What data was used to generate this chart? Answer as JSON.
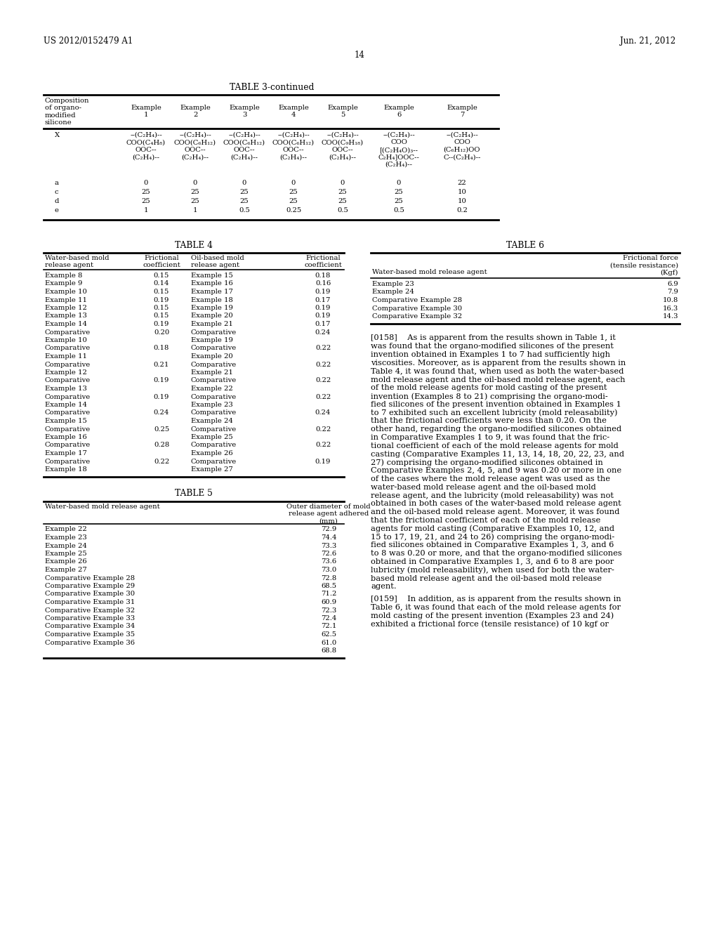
{
  "bg_color": "#ffffff",
  "header_left": "US 2012/0152479 A1",
  "header_right": "Jun. 21, 2012",
  "page_num": "14",
  "table3_title": "TABLE 3-continued",
  "table4_title": "TABLE 4",
  "table5_title": "TABLE 5",
  "table6_title": "TABLE 6",
  "table3_x_data": [
    "--(C₂H₄)--\nCOO(C₄H₈)\nOOC--\n(C₂H₄)--",
    "--(C₂H₄)--\nCOO(C₆H₁₂)\nOOC--\n(C₂H₄)--",
    "--(C₂H₄)--\nCOO(C₆H₁₂)\nOOC--\n(C₂H₄)--",
    "--(C₂H₄)--\nCOO(C₆H₁₂)\nOOC--\n(C₂H₄)--",
    "--(C₂H₄)--\nCOO(C₉H₁₈)\nOOC--\n(C₂H₄)--",
    "--(C₂H₄)--\nCOO\n[(C₂H₄O)₃--\nC₂H₄]OOC--\n(C₂H₄)--",
    "--(C₂H₄)--\nCOO\n(C₆H₁₂)OO\nC--(C₂H₄)--"
  ],
  "table3_abcde": [
    [
      "a",
      "0",
      "0",
      "0",
      "0",
      "0",
      "0",
      "22"
    ],
    [
      "c",
      "25",
      "25",
      "25",
      "25",
      "25",
      "25",
      "10"
    ],
    [
      "d",
      "25",
      "25",
      "25",
      "25",
      "25",
      "25",
      "10"
    ],
    [
      "e",
      "1",
      "1",
      "0.5",
      "0.25",
      "0.5",
      "0.5",
      "0.2"
    ]
  ],
  "table4_rows": [
    [
      "Example 8",
      "0.15",
      "Example 15",
      "0.18"
    ],
    [
      "Example 9",
      "0.14",
      "Example 16",
      "0.16"
    ],
    [
      "Example 10",
      "0.15",
      "Example 17",
      "0.19"
    ],
    [
      "Example 11",
      "0.19",
      "Example 18",
      "0.17"
    ],
    [
      "Example 12",
      "0.15",
      "Example 19",
      "0.19"
    ],
    [
      "Example 13",
      "0.15",
      "Example 20",
      "0.19"
    ],
    [
      "Example 14",
      "0.19",
      "Example 21",
      "0.17"
    ],
    [
      "Comparative",
      "0.20",
      "Comparative",
      "0.24"
    ],
    [
      "Example 10",
      "",
      "Example 19",
      ""
    ],
    [
      "Comparative",
      "0.18",
      "Comparative",
      "0.22"
    ],
    [
      "Example 11",
      "",
      "Example 20",
      ""
    ],
    [
      "Comparative",
      "0.21",
      "Comparative",
      "0.22"
    ],
    [
      "Example 12",
      "",
      "Example 21",
      ""
    ],
    [
      "Comparative",
      "0.19",
      "Comparative",
      "0.22"
    ],
    [
      "Example 13",
      "",
      "Example 22",
      ""
    ],
    [
      "Comparative",
      "0.19",
      "Comparative",
      "0.22"
    ],
    [
      "Example 14",
      "",
      "Example 23",
      ""
    ],
    [
      "Comparative",
      "0.24",
      "Comparative",
      "0.24"
    ],
    [
      "Example 15",
      "",
      "Example 24",
      ""
    ],
    [
      "Comparative",
      "0.25",
      "Comparative",
      "0.22"
    ],
    [
      "Example 16",
      "",
      "Example 25",
      ""
    ],
    [
      "Comparative",
      "0.28",
      "Comparative",
      "0.22"
    ],
    [
      "Example 17",
      "",
      "Example 26",
      ""
    ],
    [
      "Comparative",
      "0.22",
      "Comparative",
      "0.19"
    ],
    [
      "Example 18",
      "",
      "Example 27",
      ""
    ]
  ],
  "table5_rows": [
    [
      "Example 22",
      "72.9"
    ],
    [
      "Example 23",
      "74.4"
    ],
    [
      "Example 24",
      "73.3"
    ],
    [
      "Example 25",
      "72.6"
    ],
    [
      "Example 26",
      "73.6"
    ],
    [
      "Example 27",
      "73.0"
    ],
    [
      "Comparative Example 28",
      "72.8"
    ],
    [
      "Comparative Example 29",
      "68.5"
    ],
    [
      "Comparative Example 30",
      "71.2"
    ],
    [
      "Comparative Example 31",
      "60.9"
    ],
    [
      "Comparative Example 32",
      "72.3"
    ],
    [
      "Comparative Example 33",
      "72.4"
    ],
    [
      "Comparative Example 34",
      "72.1"
    ],
    [
      "Comparative Example 35",
      "62.5"
    ],
    [
      "Comparative Example 36",
      "61.0"
    ],
    [
      "",
      "68.8"
    ]
  ],
  "table6_rows": [
    [
      "Example 23",
      "6.9"
    ],
    [
      "Example 24",
      "7.9"
    ],
    [
      "Comparative Example 28",
      "10.8"
    ],
    [
      "Comparative Example 30",
      "16.3"
    ],
    [
      "Comparative Example 32",
      "14.3"
    ]
  ],
  "para0158_lines": [
    "[0158]    As is apparent from the results shown in Table 1, it",
    "was found that the organo-modified silicones of the present",
    "invention obtained in Examples 1 to 7 had sufficiently high",
    "viscosities. Moreover, as is apparent from the results shown in",
    "Table 4, it was found that, when used as both the water-based",
    "mold release agent and the oil-based mold release agent, each",
    "of the mold release agents for mold casting of the present",
    "invention (Examples 8 to 21) comprising the organo-modi-",
    "fied silicones of the present invention obtained in Examples 1",
    "to 7 exhibited such an excellent lubricity (mold releasability)",
    "that the frictional coefficients were less than 0.20. On the",
    "other hand, regarding the organo-modified silicones obtained",
    "in Comparative Examples 1 to 9, it was found that the fric-",
    "tional coefficient of each of the mold release agents for mold",
    "casting (Comparative Examples 11, 13, 14, 18, 20, 22, 23, and",
    "27) comprising the organo-modified silicones obtained in",
    "Comparative Examples 2, 4, 5, and 9 was 0.20 or more in one",
    "of the cases where the mold release agent was used as the",
    "water-based mold release agent and the oil-based mold",
    "release agent, and the lubricity (mold releasability) was not",
    "obtained in both cases of the water-based mold release agent",
    "and the oil-based mold release agent. Moreover, it was found",
    "that the frictional coefficient of each of the mold release",
    "agents for mold casting (Comparative Examples 10, 12, and",
    "15 to 17, 19, 21, and 24 to 26) comprising the organo-modi-",
    "fied silicones obtained in Comparative Examples 1, 3, and 6",
    "to 8 was 0.20 or more, and that the organo-modified silicones",
    "obtained in Comparative Examples 1, 3, and 6 to 8 are poor",
    "lubricity (mold releasability), when used for both the water-",
    "based mold release agent and the oil-based mold release",
    "agent."
  ],
  "para0159_lines": [
    "[0159]    In addition, as is apparent from the results shown in",
    "Table 6, it was found that each of the mold release agents for",
    "mold casting of the present invention (Examples 23 and 24)",
    "exhibited a frictional force (tensile resistance) of 10 kgf or"
  ]
}
